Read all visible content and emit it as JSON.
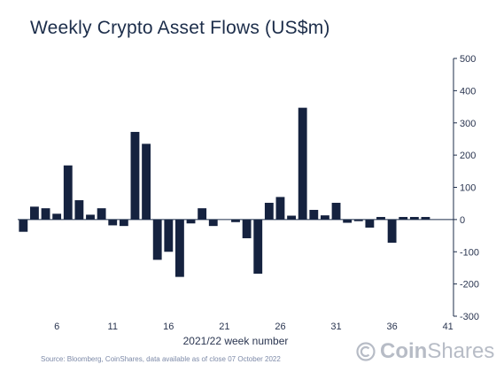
{
  "title": "Weekly Crypto Asset Flows (US$m)",
  "source": "Source: Bloomberg, CoinShares, data available as of close 07 October 2022",
  "brand": {
    "name_bold": "Coin",
    "name_light": "Shares",
    "logo_icon": "coinshares-logo-icon"
  },
  "colors": {
    "bar": "#15223f",
    "axis": "#1c2d4a",
    "text": "#2a3550",
    "brand": "#b7bcc6"
  },
  "chart_data": {
    "type": "bar",
    "title": "Weekly Crypto Asset Flows (US$m)",
    "xlabel": "2021/22 week number",
    "ylabel": "",
    "ylim": [
      -300,
      500
    ],
    "yticks": [
      500,
      400,
      300,
      200,
      100,
      0,
      -100,
      -200,
      -300
    ],
    "y_axis_side": "right",
    "grid": false,
    "legend": "none",
    "xtick_labels": [
      "6",
      "11",
      "16",
      "21",
      "26",
      "31",
      "36",
      "41"
    ],
    "categories": [
      "3",
      "4",
      "5",
      "6",
      "7",
      "8",
      "9",
      "10",
      "11",
      "12",
      "13",
      "14",
      "15",
      "16",
      "17",
      "18",
      "19",
      "20",
      "21",
      "22",
      "23",
      "24",
      "25",
      "26",
      "27",
      "28",
      "29",
      "30",
      "31",
      "32",
      "33",
      "34",
      "35",
      "36",
      "37",
      "38",
      "39",
      "40",
      "41"
    ],
    "series": [
      {
        "values": [
          -38,
          40,
          35,
          18,
          168,
          60,
          15,
          35,
          -18,
          -20,
          272,
          235,
          -125,
          -100,
          -178,
          -12,
          35,
          -20,
          0,
          -8,
          -58,
          -168,
          52,
          70,
          12,
          347,
          30,
          13,
          52,
          -10,
          -5,
          -25,
          8,
          -72,
          8,
          8,
          8,
          0,
          0
        ]
      }
    ]
  }
}
